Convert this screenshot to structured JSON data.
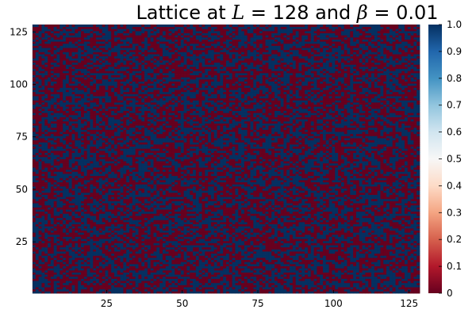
{
  "chart_data": {
    "type": "heatmap",
    "title": {
      "prefix": "Lattice at ",
      "l_symbol": "L",
      "l_eq": " = 128 and ",
      "beta_symbol": "β",
      "beta_eq": " = 0.01"
    },
    "lattice_size": 128,
    "beta": 0.01,
    "value_states": [
      0,
      1
    ],
    "xlim": [
      0.5,
      128.5
    ],
    "ylim": [
      0.5,
      128.5
    ],
    "x_ticks": [
      25,
      50,
      75,
      100,
      125
    ],
    "x_tick_labels": [
      "25",
      "50",
      "75",
      "100",
      "125"
    ],
    "y_ticks": [
      25,
      50,
      75,
      100,
      125
    ],
    "y_tick_labels": [
      "25",
      "50",
      "75",
      "100",
      "125"
    ],
    "colorbar": {
      "range": [
        0,
        1
      ],
      "colormap": "RdBu",
      "ticks": [
        0,
        0.1,
        0.2,
        0.3,
        0.4,
        0.5,
        0.6,
        0.7,
        0.8,
        0.9,
        1.0
      ],
      "tick_labels": [
        "0",
        "0.1",
        "0.2",
        "0.3",
        "0.4",
        "0.5",
        "0.6",
        "0.7",
        "0.8",
        "0.9",
        "1.0"
      ]
    },
    "colors": {
      "low": "#67001f",
      "high": "#053061"
    },
    "grid": false
  }
}
